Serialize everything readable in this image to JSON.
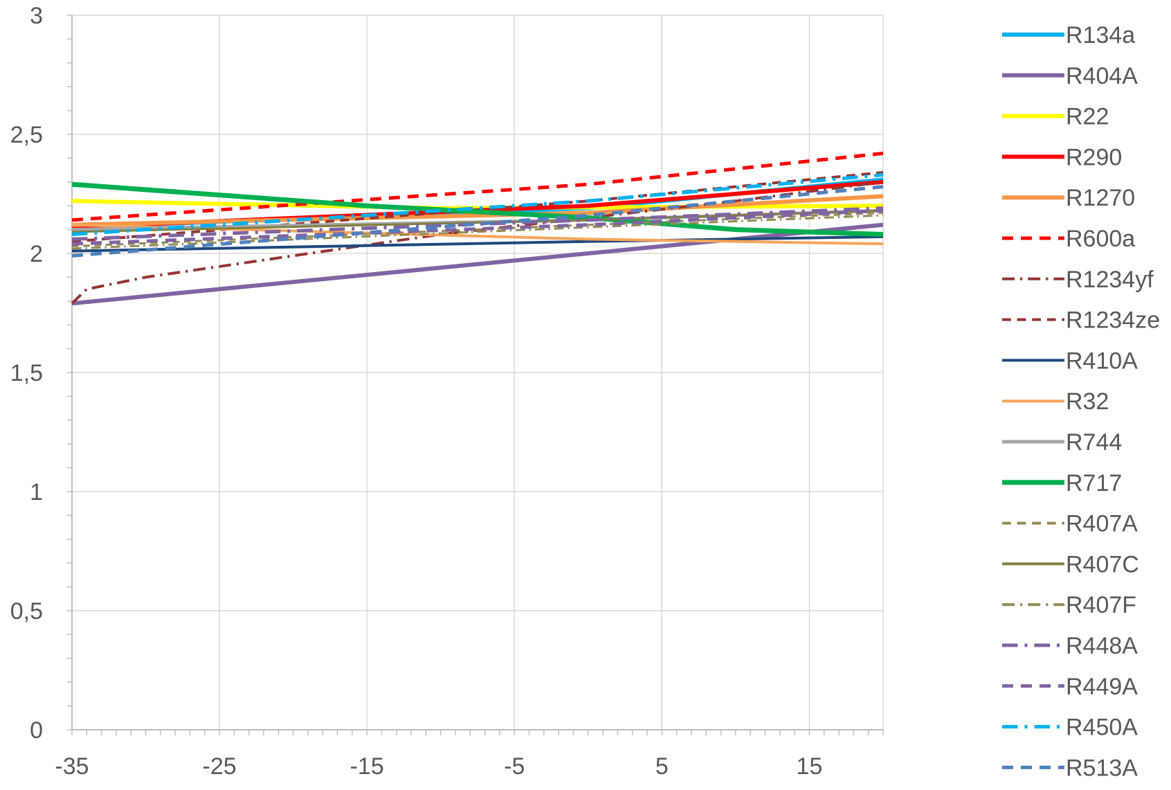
{
  "chart_data": {
    "type": "line",
    "title": "",
    "xlabel": "",
    "ylabel": "",
    "xlim": [
      -35,
      20
    ],
    "ylim": [
      0,
      3
    ],
    "x_ticks": [
      -35,
      -25,
      -15,
      -5,
      5,
      15
    ],
    "x_tick_labels": [
      "-35",
      "-25",
      "-15",
      "-5",
      "5",
      "15"
    ],
    "y_ticks": [
      0,
      0.5,
      1,
      1.5,
      2,
      2.5,
      3
    ],
    "y_tick_labels": [
      "0",
      "0,5",
      "1",
      "1,5",
      "2",
      "2,5",
      "3"
    ],
    "grid": "vertical-and-horizontal",
    "legend_position": "right",
    "series": [
      {
        "name": "R134a",
        "color": "#00B0F0",
        "dash": "solid",
        "width": 6,
        "points": [
          [
            -35,
            2.11
          ],
          [
            0,
            2.19
          ],
          [
            20,
            2.31
          ]
        ]
      },
      {
        "name": "R404A",
        "color": "#8064A2",
        "dash": "solid",
        "width": 6,
        "points": [
          [
            -35,
            1.79
          ],
          [
            0,
            2.0
          ],
          [
            20,
            2.12
          ]
        ]
      },
      {
        "name": "R22",
        "color": "#FFFF00",
        "dash": "solid",
        "width": 6,
        "points": [
          [
            -35,
            2.22
          ],
          [
            -10,
            2.19
          ],
          [
            20,
            2.2
          ]
        ]
      },
      {
        "name": "R290",
        "color": "#FF0000",
        "dash": "solid",
        "width": 6,
        "points": [
          [
            -35,
            2.11
          ],
          [
            0,
            2.2
          ],
          [
            20,
            2.3
          ]
        ]
      },
      {
        "name": "R1270",
        "color": "#F79646",
        "dash": "solid",
        "width": 6,
        "points": [
          [
            -35,
            2.12
          ],
          [
            0,
            2.17
          ],
          [
            20,
            2.24
          ]
        ]
      },
      {
        "name": "R600a",
        "color": "#FF0000",
        "dash": "dash",
        "width": 5,
        "points": [
          [
            -35,
            2.14
          ],
          [
            0,
            2.29
          ],
          [
            20,
            2.42
          ]
        ]
      },
      {
        "name": "R1234yf",
        "color": "#943634",
        "dash": "dashdot",
        "width": 4,
        "points": [
          [
            -35,
            1.79
          ],
          [
            -34,
            1.85
          ],
          [
            -30,
            1.9
          ],
          [
            -20,
            1.99
          ],
          [
            -10,
            2.08
          ],
          [
            0,
            2.15
          ],
          [
            10,
            2.22
          ],
          [
            20,
            2.3
          ]
        ]
      },
      {
        "name": "R1234ze",
        "color": "#943634",
        "dash": "dash",
        "width": 4,
        "points": [
          [
            -35,
            2.05
          ],
          [
            0,
            2.22
          ],
          [
            20,
            2.34
          ]
        ]
      },
      {
        "name": "R410A",
        "color": "#1F497D",
        "dash": "solid",
        "width": 4,
        "points": [
          [
            -35,
            2.01
          ],
          [
            0,
            2.05
          ],
          [
            20,
            2.07
          ]
        ]
      },
      {
        "name": "R32",
        "color": "#FAA55A",
        "dash": "solid",
        "width": 4,
        "points": [
          [
            -35,
            2.12
          ],
          [
            0,
            2.06
          ],
          [
            20,
            2.04
          ]
        ]
      },
      {
        "name": "R744",
        "color": "#A6A6A6",
        "dash": "solid",
        "width": 5,
        "points": [
          [
            -35,
            2.1
          ],
          [
            0,
            2.14
          ],
          [
            20,
            2.18
          ]
        ]
      },
      {
        "name": "R717",
        "color": "#00B050",
        "dash": "solid",
        "width": 7,
        "points": [
          [
            -35,
            2.29
          ],
          [
            -15,
            2.2
          ],
          [
            0,
            2.15
          ],
          [
            10,
            2.1
          ],
          [
            20,
            2.08
          ]
        ]
      },
      {
        "name": "R407A",
        "color": "#948A54",
        "dash": "dash",
        "width": 3,
        "points": [
          [
            -35,
            2.03
          ],
          [
            0,
            2.12
          ],
          [
            20,
            2.17
          ]
        ]
      },
      {
        "name": "R407C",
        "color": "#7F7F3F",
        "dash": "solid",
        "width": 3,
        "points": [
          [
            -35,
            2.09
          ],
          [
            0,
            2.14
          ],
          [
            20,
            2.18
          ]
        ]
      },
      {
        "name": "R407F",
        "color": "#948A54",
        "dash": "dashdot",
        "width": 3,
        "points": [
          [
            -35,
            2.02
          ],
          [
            0,
            2.11
          ],
          [
            20,
            2.16
          ]
        ]
      },
      {
        "name": "R448A",
        "color": "#8064A2",
        "dash": "dashdot",
        "width": 5,
        "points": [
          [
            -35,
            2.06
          ],
          [
            0,
            2.14
          ],
          [
            20,
            2.19
          ]
        ]
      },
      {
        "name": "R449A",
        "color": "#8064A2",
        "dash": "dash",
        "width": 5,
        "points": [
          [
            -35,
            2.04
          ],
          [
            0,
            2.12
          ],
          [
            20,
            2.18
          ]
        ]
      },
      {
        "name": "R450A",
        "color": "#00B0F0",
        "dash": "dashdot",
        "width": 5,
        "points": [
          [
            -35,
            2.08
          ],
          [
            0,
            2.22
          ],
          [
            20,
            2.33
          ]
        ]
      },
      {
        "name": "R513A",
        "color": "#4F81BD",
        "dash": "dash",
        "width": 5,
        "points": [
          [
            -35,
            1.99
          ],
          [
            0,
            2.16
          ],
          [
            20,
            2.28
          ]
        ]
      }
    ]
  }
}
